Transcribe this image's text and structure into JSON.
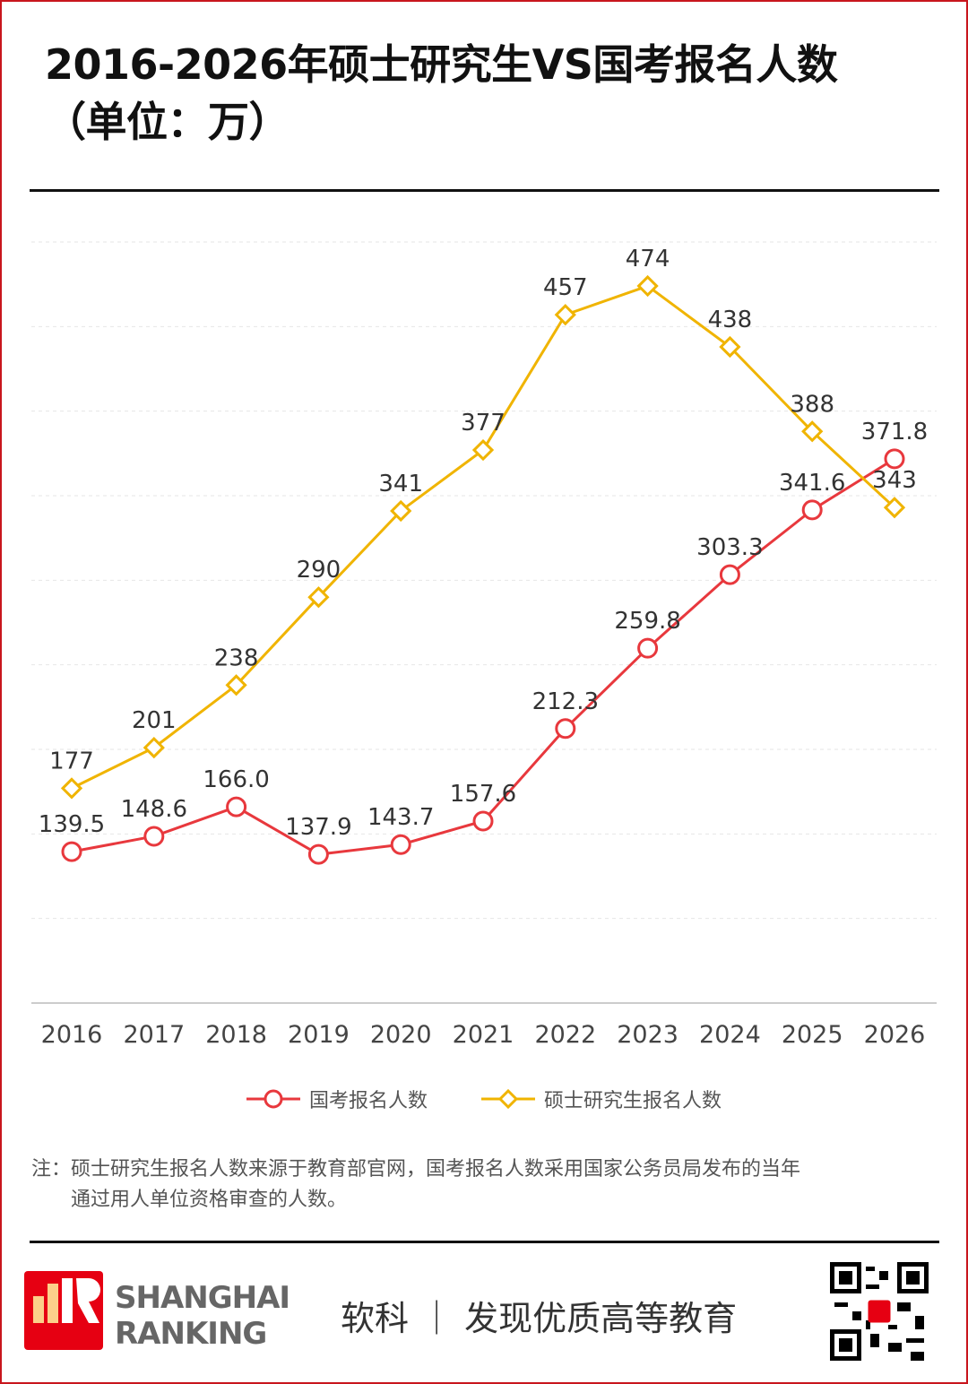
{
  "title_line1": "2016-2026年硕士研究生VS国考报名人数",
  "title_line2": "（单位：万）",
  "chart_data": {
    "type": "line",
    "title": "2016-2026年硕士研究生VS国考报名人数（单位：万）",
    "categories": [
      "2016",
      "2017",
      "2018",
      "2019",
      "2020",
      "2021",
      "2022",
      "2023",
      "2024",
      "2025",
      "2026"
    ],
    "ylim": [
      50,
      500
    ],
    "grid": true,
    "legend_position": "bottom",
    "series": [
      {
        "name": "国考报名人数",
        "color": "#e8383d",
        "marker": "circle",
        "values": [
          139.5,
          148.6,
          166.0,
          137.9,
          143.7,
          157.6,
          212.3,
          259.8,
          303.3,
          341.6,
          371.8
        ],
        "labels": [
          "139.5",
          "148.6",
          "166.0",
          "137.9",
          "143.7",
          "157.6",
          "212.3",
          "259.8",
          "303.3",
          "341.6",
          "371.8"
        ]
      },
      {
        "name": "硕士研究生报名人数",
        "color": "#f0b400",
        "marker": "diamond",
        "values": [
          177,
          201,
          238,
          290,
          341,
          377,
          457,
          474,
          438,
          388,
          343
        ],
        "labels": [
          "177",
          "201",
          "238",
          "290",
          "341",
          "377",
          "457",
          "474",
          "438",
          "388",
          "343"
        ]
      }
    ]
  },
  "note_line1": "注：硕士研究生报名人数来源于教育部官网，国考报名人数采用国家公务员局发布的当年",
  "note_line2": "通过用人单位资格审查的人数。",
  "footer": {
    "logo_text": "软科",
    "brand_line1": "SHANGHAI",
    "brand_line2": "RANKING",
    "slogan": "软科 ｜ 发现优质高等教育"
  }
}
